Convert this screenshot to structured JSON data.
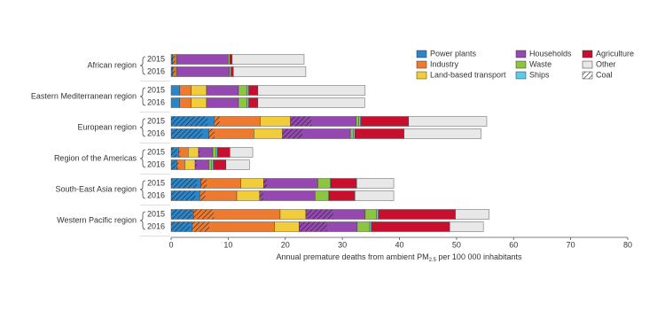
{
  "chart_data": {
    "type": "stacked-bar-horizontal",
    "groups": [
      "African region",
      "Eastern Mediterranean region",
      "European region",
      "Region of the Americas",
      "South-East Asia region",
      "Western Pacific region"
    ],
    "categories": [
      "2015",
      "2016",
      "2015",
      "2016",
      "2015",
      "2016",
      "2015",
      "2016",
      "2015",
      "2016",
      "2015",
      "2016"
    ],
    "series": [
      {
        "name": "Power plants",
        "color": "#2b85c8",
        "values": [
          0.3,
          0.3,
          1.5,
          1.5,
          7.5,
          6.6,
          1.3,
          1.0,
          5.2,
          5.0,
          3.9,
          3.7
        ],
        "coal_values": [
          0.3,
          0.3,
          0,
          0,
          6.4,
          5.5,
          1.0,
          0.8,
          4.5,
          4.3,
          3.6,
          3.3
        ]
      },
      {
        "name": "Industry",
        "color": "#ee7a30",
        "values": [
          0.5,
          0.5,
          2.0,
          2.0,
          8.1,
          7.9,
          1.7,
          1.4,
          7.0,
          6.5,
          15.2,
          14.4
        ],
        "coal_values": [
          0.4,
          0.4,
          0,
          0,
          1.0,
          1.0,
          0.3,
          0.3,
          1.0,
          1.0,
          3.6,
          3.0
        ]
      },
      {
        "name": "Land-based transport",
        "color": "#f2cd3b",
        "values": [
          0.2,
          0.2,
          2.7,
          2.7,
          5.3,
          5.0,
          1.8,
          1.8,
          4.0,
          4.0,
          4.5,
          4.3
        ]
      },
      {
        "name": "Households",
        "color": "#9548b0",
        "values": [
          9.0,
          9.2,
          5.6,
          5.6,
          11.5,
          11.9,
          2.5,
          2.4,
          9.5,
          9.7,
          10.4,
          10.2
        ],
        "coal_values": [
          0,
          0,
          0,
          0,
          3.7,
          3.5,
          0.3,
          0.3,
          0.6,
          0.6,
          4.8,
          4.9
        ]
      },
      {
        "name": "Waste",
        "color": "#8cc540",
        "values": [
          0.3,
          0.3,
          1.5,
          1.5,
          0.5,
          0.5,
          0.5,
          0.5,
          2.2,
          2.4,
          2.0,
          2.2
        ]
      },
      {
        "name": "Ships",
        "color": "#5ccbe9",
        "values": [
          0,
          0,
          0.3,
          0.3,
          0.3,
          0.3,
          0.3,
          0.3,
          0.1,
          0.1,
          0.3,
          0.3
        ]
      },
      {
        "name": "Agriculture",
        "color": "#c8102e",
        "values": [
          0.4,
          0.4,
          1.6,
          1.6,
          8.4,
          8.6,
          2.2,
          2.2,
          4.5,
          4.5,
          13.5,
          13.7
        ]
      },
      {
        "name": "Other",
        "color": "#e8e8e8",
        "values": [
          12.6,
          12.7,
          18.8,
          18.7,
          13.7,
          13.5,
          4.0,
          4.1,
          6.5,
          6.8,
          5.9,
          5.9
        ]
      }
    ],
    "coal_legend": "Coal",
    "xlim": [
      0,
      80
    ],
    "xticks": [
      0,
      10,
      20,
      30,
      40,
      50,
      60,
      70,
      80
    ],
    "xlabel": "Annual premature deaths from ambient PM",
    "xlabel_sub": "2.5",
    "xlabel_end": " per 100 000 inhabitants"
  }
}
